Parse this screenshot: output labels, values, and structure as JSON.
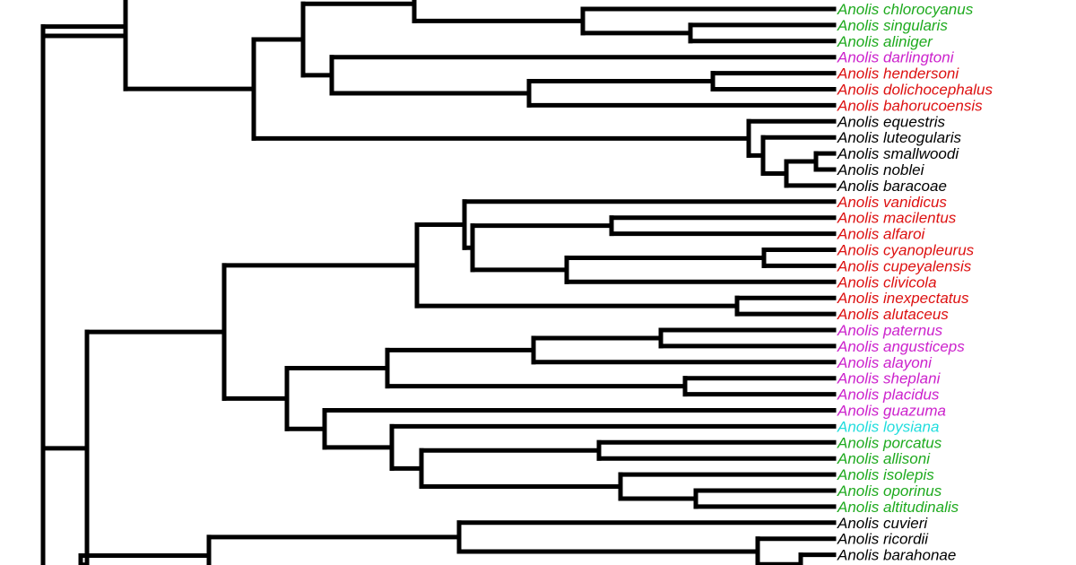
{
  "palette": {
    "branch": "#000000",
    "green": "#1faa1f",
    "magenta": "#cc22cc",
    "red": "#dd1111",
    "cyan": "#22dddd",
    "black": "#000000"
  },
  "taxa": [
    {
      "name": "Anolis chlorocyanus",
      "color": "green"
    },
    {
      "name": "Anolis singularis",
      "color": "green"
    },
    {
      "name": "Anolis aliniger",
      "color": "green"
    },
    {
      "name": "Anolis darlingtoni",
      "color": "magenta"
    },
    {
      "name": "Anolis hendersoni",
      "color": "red"
    },
    {
      "name": "Anolis dolichocephalus",
      "color": "red"
    },
    {
      "name": "Anolis bahorucoensis",
      "color": "red"
    },
    {
      "name": "Anolis equestris",
      "color": "black"
    },
    {
      "name": "Anolis luteogularis",
      "color": "black"
    },
    {
      "name": "Anolis smallwoodi",
      "color": "black"
    },
    {
      "name": "Anolis noblei",
      "color": "black"
    },
    {
      "name": "Anolis baracoae",
      "color": "black"
    },
    {
      "name": "Anolis vanidicus",
      "color": "red"
    },
    {
      "name": "Anolis macilentus",
      "color": "red"
    },
    {
      "name": "Anolis alfaroi",
      "color": "red"
    },
    {
      "name": "Anolis cyanopleurus",
      "color": "red"
    },
    {
      "name": "Anolis cupeyalensis",
      "color": "red"
    },
    {
      "name": "Anolis clivicola",
      "color": "red"
    },
    {
      "name": "Anolis inexpectatus",
      "color": "red"
    },
    {
      "name": "Anolis alutaceus",
      "color": "red"
    },
    {
      "name": "Anolis paternus",
      "color": "magenta"
    },
    {
      "name": "Anolis angusticeps",
      "color": "magenta"
    },
    {
      "name": "Anolis alayoni",
      "color": "magenta"
    },
    {
      "name": "Anolis sheplani",
      "color": "magenta"
    },
    {
      "name": "Anolis placidus",
      "color": "magenta"
    },
    {
      "name": "Anolis guazuma",
      "color": "magenta"
    },
    {
      "name": "Anolis loysiana",
      "color": "cyan"
    },
    {
      "name": "Anolis porcatus",
      "color": "green"
    },
    {
      "name": "Anolis allisoni",
      "color": "green"
    },
    {
      "name": "Anolis isolepis",
      "color": "green"
    },
    {
      "name": "Anolis oporinus",
      "color": "green"
    },
    {
      "name": "Anolis altitudinalis",
      "color": "green"
    },
    {
      "name": "Anolis cuvieri",
      "color": "black"
    },
    {
      "name": "Anolis ricordii",
      "color": "black"
    },
    {
      "name": "Anolis barahonae",
      "color": "black"
    }
  ]
}
